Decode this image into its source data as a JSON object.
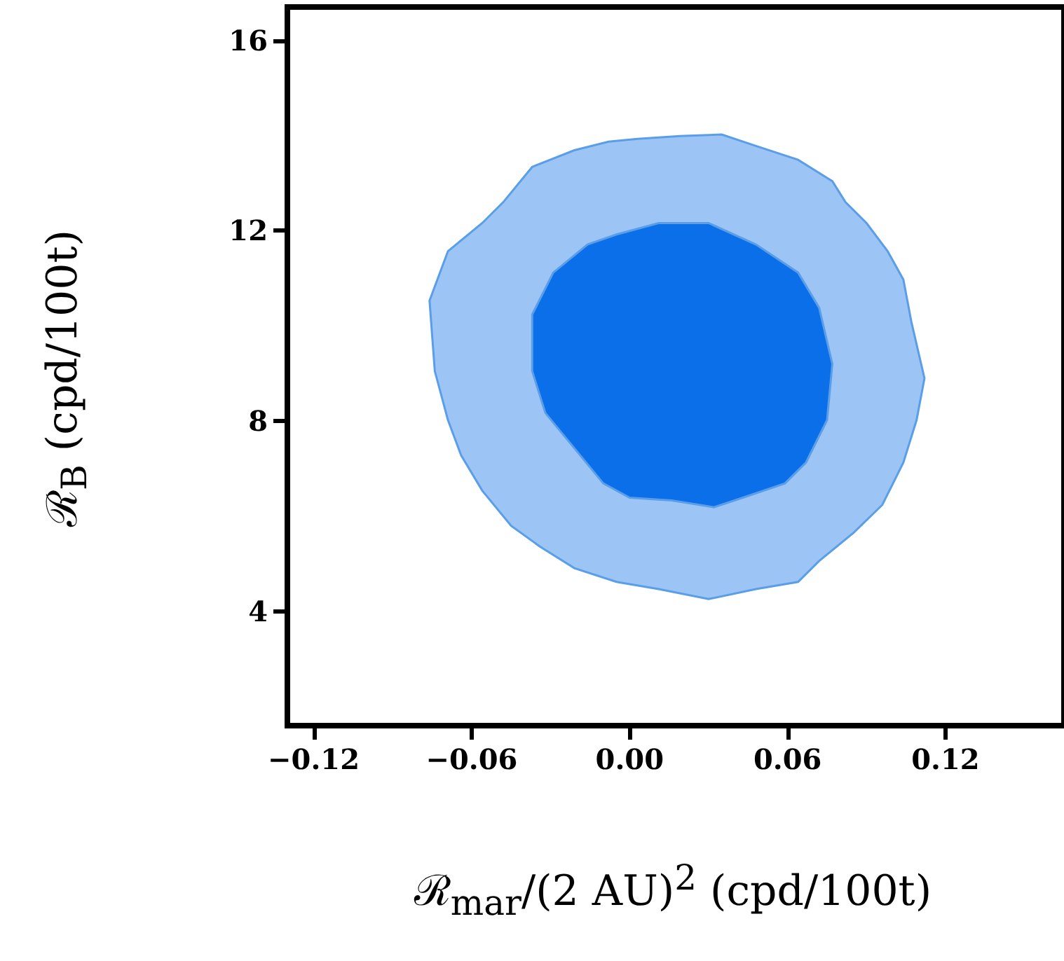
{
  "chart_data": {
    "type": "area",
    "xlabel": "ℛ$_{mar}$/(2 AU)$^{2}$ (cpd/100t)",
    "ylabel": "ℛ$_{B}$ (cpd/100t)",
    "xlim": [
      -0.13,
      0.165
    ],
    "ylim": [
      1.6,
      16.7
    ],
    "xticks": [
      {
        "value": -0.12,
        "label": "−0.12"
      },
      {
        "value": -0.06,
        "label": "−0.06"
      },
      {
        "value": 0,
        "label": "0.00"
      },
      {
        "value": 0.06,
        "label": "0.06"
      },
      {
        "value": 0.12,
        "label": "0.12"
      }
    ],
    "yticks": [
      4,
      8,
      12,
      16
    ],
    "grid": false,
    "series": [
      {
        "color": "#9cc5f5",
        "x": [
          0.003,
          0.019,
          0.035,
          0.048,
          0.064,
          0.077,
          0.082,
          0.09,
          0.098,
          0.104,
          0.107,
          0.112,
          0.109,
          0.104,
          0.096,
          0.085,
          0.072,
          0.064,
          0.048,
          0.03,
          0.011,
          -0.005,
          -0.021,
          -0.034,
          -0.045,
          -0.056,
          -0.064,
          -0.069,
          -0.074,
          -0.076,
          -0.069,
          -0.056,
          -0.048,
          -0.037,
          -0.021,
          -0.008
        ],
        "values": [
          13.93,
          13.99,
          14.02,
          13.78,
          13.49,
          13.04,
          12.6,
          12.16,
          11.57,
          10.97,
          10.09,
          8.9,
          8.02,
          7.13,
          6.24,
          5.65,
          5.06,
          4.62,
          4.47,
          4.26,
          4.47,
          4.62,
          4.91,
          5.36,
          5.8,
          6.54,
          7.28,
          8.02,
          9.05,
          10.53,
          11.57,
          12.16,
          12.6,
          13.34,
          13.69,
          13.87
        ]
      },
      {
        "color": "#0a6fe8",
        "x": [
          0.011,
          0.03,
          0.048,
          0.064,
          0.072,
          0.077,
          0.075,
          0.067,
          0.059,
          0.043,
          0.032,
          0.016,
          0.0,
          -0.01,
          -0.021,
          -0.032,
          -0.037,
          -0.037,
          -0.029,
          -0.016,
          -0.005
        ],
        "values": [
          12.16,
          12.16,
          11.71,
          11.12,
          10.38,
          9.2,
          8.02,
          7.13,
          6.69,
          6.39,
          6.19,
          6.33,
          6.39,
          6.69,
          7.43,
          8.17,
          9.05,
          10.24,
          11.12,
          11.71,
          11.92
        ]
      }
    ]
  }
}
